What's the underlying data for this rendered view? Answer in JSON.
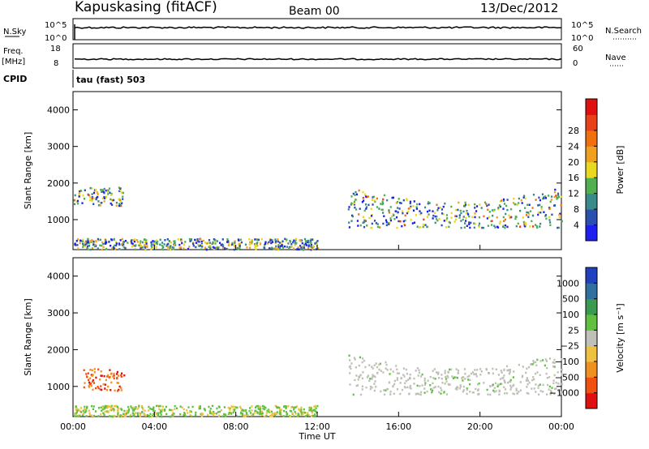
{
  "header": {
    "station": "Kapuskasing (fitACF)",
    "beam": "Beam 00",
    "date": "13/Dec/2012"
  },
  "top_panels": {
    "nsky_label": "N.Sky",
    "nsky_ticks": [
      "10^5",
      "10^0"
    ],
    "nsearch_label": "N.Search",
    "nsearch_ticks": [
      "10^5",
      "10^0"
    ],
    "freq_label_1": "Freq.",
    "freq_label_2": "[MHz]",
    "freq_ticks": [
      "18",
      "8"
    ],
    "nave_label": "Nave",
    "nave_ticks": [
      "60",
      "0"
    ],
    "cpid_label": "CPID",
    "cpid_text": "tau (fast) 503"
  },
  "chart_data": [
    {
      "type": "heatmap",
      "title": "",
      "xlabel": "",
      "ylabel": "Slant Range [km]",
      "x_ticks": [
        "00:00",
        "04:00",
        "08:00",
        "12:00",
        "16:00",
        "20:00",
        "00:00"
      ],
      "y_ticks": [
        "1000",
        "2000",
        "3000",
        "4000"
      ],
      "ylim": [
        180,
        4500
      ],
      "colorbar_label": "Power [dB]",
      "colorbar_ticks": [
        "4",
        "8",
        "12",
        "16",
        "20",
        "24",
        "28"
      ],
      "colorbar_colors": [
        "#1e1ef0",
        "#2a4fb0",
        "#3a8a8a",
        "#50b050",
        "#e8d820",
        "#f0a020",
        "#f07010",
        "#e84018",
        "#e01010"
      ],
      "echo_regions": [
        {
          "name": "early-echo-1500-2000km",
          "t_start": 0.0,
          "t_end": 2.5,
          "r_min": 1400,
          "r_max": 1900
        },
        {
          "name": "evening-band",
          "t_start": 13.5,
          "t_end": 24.0,
          "r_min": 800,
          "r_max": 1900
        },
        {
          "name": "near-range-ground",
          "t_start": 0.0,
          "t_end": 12.0,
          "r_min": 200,
          "r_max": 500
        }
      ]
    },
    {
      "type": "heatmap",
      "title": "",
      "xlabel": "Time UT",
      "ylabel": "Slant Range [km]",
      "x_ticks": [
        "00:00",
        "04:00",
        "08:00",
        "12:00",
        "16:00",
        "20:00",
        "00:00"
      ],
      "y_ticks": [
        "1000",
        "2000",
        "3000",
        "4000"
      ],
      "ylim": [
        180,
        4500
      ],
      "colorbar_label": "Velocity [m s⁻¹]",
      "colorbar_ticks": [
        "1000",
        "500",
        "100",
        "25",
        "−25",
        "−100",
        "−500",
        "−1000"
      ],
      "colorbar_colors": [
        "#2040c0",
        "#3070a0",
        "#3a9a50",
        "#60c040",
        "#c0c0b8",
        "#f0c040",
        "#f09020",
        "#f05010",
        "#e01010"
      ],
      "echo_regions": [
        {
          "name": "early-negative-velocity",
          "t_start": 0.5,
          "t_end": 2.5,
          "r_min": 900,
          "r_max": 1500
        },
        {
          "name": "evening-ground-scatter",
          "t_start": 13.5,
          "t_end": 24.0,
          "r_min": 800,
          "r_max": 1900
        },
        {
          "name": "near-range-positive",
          "t_start": 0.0,
          "t_end": 12.0,
          "r_min": 200,
          "r_max": 500
        }
      ]
    }
  ]
}
